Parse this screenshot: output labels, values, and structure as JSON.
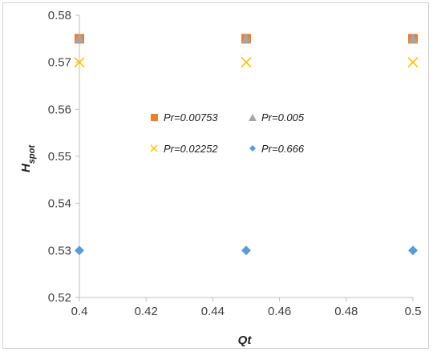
{
  "chart_data": {
    "type": "scatter",
    "xlabel": "Qt",
    "ylabel": {
      "main": "H",
      "sub": "spot"
    },
    "xlim": [
      0.4,
      0.5
    ],
    "ylim": [
      0.52,
      0.58
    ],
    "xticks": [
      "0.4",
      "0.42",
      "0.44",
      "0.46",
      "0.48",
      "0.5"
    ],
    "yticks": [
      "0.52",
      "0.53",
      "0.54",
      "0.55",
      "0.56",
      "0.57",
      "0.58"
    ],
    "grid": false,
    "legend_position": "center",
    "series": [
      {
        "name": "Pr=0.00753",
        "marker": "square",
        "color": "#ED7D31",
        "x": [
          0.4,
          0.45,
          0.5
        ],
        "y": [
          0.575,
          0.575,
          0.575
        ]
      },
      {
        "name": "Pr=0.005",
        "marker": "triangle",
        "color": "#A5A5A5",
        "x": [
          0.4,
          0.45,
          0.5
        ],
        "y": [
          0.575,
          0.575,
          0.575
        ]
      },
      {
        "name": "Pr=0.02252",
        "marker": "x",
        "color": "#FFC000",
        "x": [
          0.4,
          0.45,
          0.5
        ],
        "y": [
          0.57,
          0.57,
          0.57
        ]
      },
      {
        "name": "Pr=0.666",
        "marker": "diamond",
        "color": "#5B9BD5",
        "x": [
          0.4,
          0.45,
          0.5
        ],
        "y": [
          0.53,
          0.53,
          0.53
        ]
      }
    ]
  }
}
